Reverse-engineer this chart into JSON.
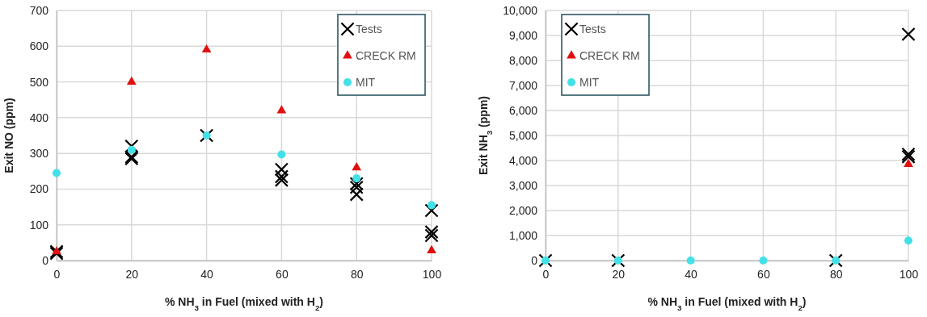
{
  "chart_data": [
    {
      "type": "scatter",
      "xlabel": "% NH$_{3}$ in Fuel (mixed with H$_{2}$)",
      "ylabel": "Exit NO (ppm)",
      "xlim": [
        0,
        100
      ],
      "xticks": [
        0,
        20,
        40,
        60,
        80,
        100
      ],
      "ylim": [
        0,
        700
      ],
      "yticks": [
        0,
        100,
        200,
        300,
        400,
        500,
        600,
        700
      ],
      "grid": true,
      "legend": "top right",
      "series": [
        {
          "name": "Tests",
          "color": "#000000",
          "marker": "cross",
          "x": [
            0,
            0,
            20,
            20,
            20,
            40,
            60,
            60,
            60,
            80,
            80,
            80,
            100,
            100,
            100
          ],
          "values": [
            25,
            20,
            320,
            290,
            285,
            350,
            255,
            235,
            225,
            215,
            205,
            185,
            140,
            80,
            70
          ]
        },
        {
          "name": "CRECK RM",
          "color": "#e01010",
          "marker": "triangle",
          "x": [
            0,
            20,
            40,
            60,
            80,
            100
          ],
          "values": [
            25,
            500,
            590,
            420,
            260,
            28
          ]
        },
        {
          "name": "MIT",
          "color": "#44e0e8",
          "marker": "circle",
          "x": [
            0,
            20,
            40,
            60,
            80,
            100
          ],
          "values": [
            245,
            310,
            350,
            297,
            230,
            155
          ]
        }
      ]
    },
    {
      "type": "scatter",
      "xlabel": "% NH$_{3}$ in Fuel (mixed with H$_{2}$)",
      "ylabel": "Exit NH$_{3}$ (ppm)",
      "xlim": [
        0,
        100
      ],
      "xticks": [
        0,
        20,
        40,
        60,
        80,
        100
      ],
      "ylim": [
        0,
        10000
      ],
      "yticks": [
        0,
        {
          "value": 1000,
          "label": "1,000"
        },
        {
          "value": 2000,
          "label": "2,000"
        },
        {
          "value": 3000,
          "label": "3,000"
        },
        {
          "value": 4000,
          "label": "4,000"
        },
        {
          "value": 5000,
          "label": "5,000"
        },
        {
          "value": 6000,
          "label": "6,000"
        },
        {
          "value": 7000,
          "label": "7,000"
        },
        {
          "value": 8000,
          "label": "8,000"
        },
        {
          "value": 9000,
          "label": "9,000"
        },
        {
          "value": 10000,
          "label": "10,000"
        }
      ],
      "grid": true,
      "legend": "top left",
      "series": [
        {
          "name": "Tests",
          "color": "#000000",
          "marker": "cross",
          "x": [
            0,
            20,
            80,
            100,
            100,
            100
          ],
          "values": [
            0,
            0,
            0,
            9050,
            4250,
            4150
          ]
        },
        {
          "name": "CRECK RM",
          "color": "#e01010",
          "marker": "triangle",
          "x": [
            100
          ],
          "values": [
            3850
          ]
        },
        {
          "name": "MIT",
          "color": "#44e0e8",
          "marker": "circle",
          "x": [
            0,
            20,
            40,
            60,
            80,
            100
          ],
          "values": [
            0,
            0,
            0,
            0,
            0,
            800
          ]
        }
      ]
    }
  ]
}
